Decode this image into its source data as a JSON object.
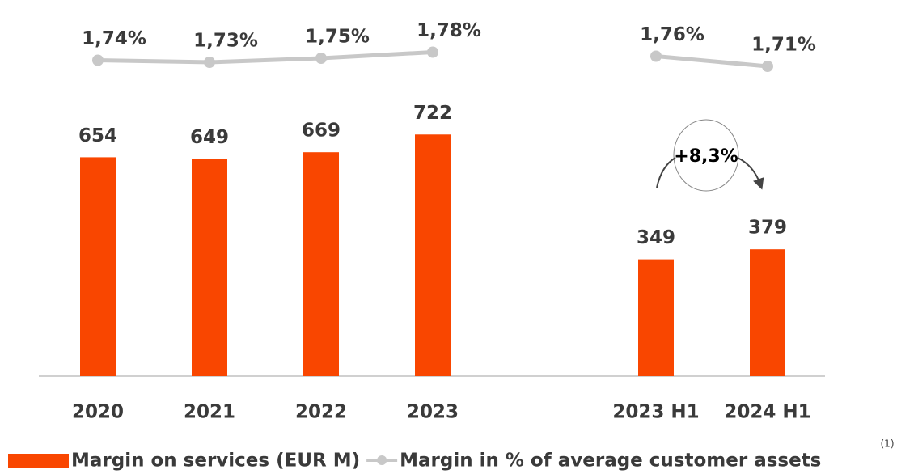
{
  "chart_data": {
    "type": "bar",
    "categories": [
      "2020",
      "2021",
      "2022",
      "2023",
      null,
      "2023 H1",
      "2024 H1"
    ],
    "series": [
      {
        "name": "Margin on services (EUR M)",
        "type": "bar",
        "color": "#f94600",
        "values": [
          654,
          649,
          669,
          722,
          null,
          349,
          379
        ]
      },
      {
        "name": "Margin in % of average customer assets",
        "type": "line",
        "axis": "y2",
        "color": "#c8c8c8",
        "values": [
          1.74,
          1.73,
          1.75,
          1.78,
          null,
          1.76,
          1.71
        ],
        "value_labels": [
          "1,74%",
          "1,73%",
          "1,75%",
          "1,78%",
          null,
          "1,76%",
          "1,71%"
        ]
      }
    ],
    "ylim": [
      0,
      800
    ],
    "y2lim": [
      1.6,
      1.9
    ],
    "annotation": "+8,3%",
    "footnote": "(1)"
  }
}
